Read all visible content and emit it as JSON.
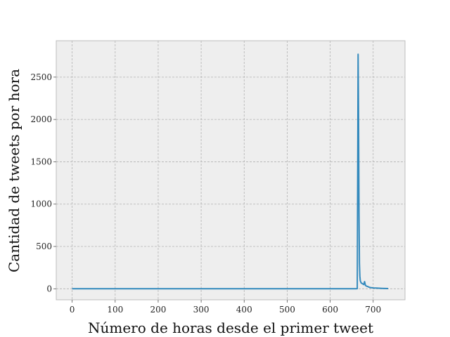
{
  "chart_data": {
    "type": "line",
    "title": "",
    "xlabel": "Número de horas desde el primer tweet",
    "ylabel": "Cantidad de tweets por hora",
    "xlim": [
      -37,
      774
    ],
    "ylim": [
      -130,
      2930
    ],
    "grid": true,
    "legend": "none",
    "colors": {
      "line": "#348abd",
      "plot_bg": "#eeeeee",
      "grid": "#b2b2b2",
      "frame": "#bcbcbc"
    },
    "x_ticks": [
      0,
      100,
      200,
      300,
      400,
      500,
      600,
      700
    ],
    "x_tick_labels": [
      "0",
      "100",
      "200",
      "300",
      "400",
      "500",
      "600",
      "700"
    ],
    "y_ticks": [
      0,
      500,
      1000,
      1500,
      2000,
      2500
    ],
    "y_tick_labels": [
      "0",
      "500",
      "1000",
      "1500",
      "2000",
      "2500"
    ],
    "series": [
      {
        "x": [
          0,
          100,
          200,
          300,
          400,
          500,
          600,
          660,
          663,
          665,
          666,
          667,
          668,
          669,
          670,
          672,
          675,
          678,
          680,
          682,
          685,
          688,
          690,
          693,
          700,
          710,
          720,
          735
        ],
        "values": [
          0,
          0,
          0,
          0,
          0,
          0,
          0,
          0,
          2,
          2770,
          2100,
          900,
          300,
          150,
          95,
          70,
          60,
          50,
          85,
          40,
          30,
          25,
          20,
          15,
          10,
          8,
          5,
          3
        ]
      }
    ]
  }
}
